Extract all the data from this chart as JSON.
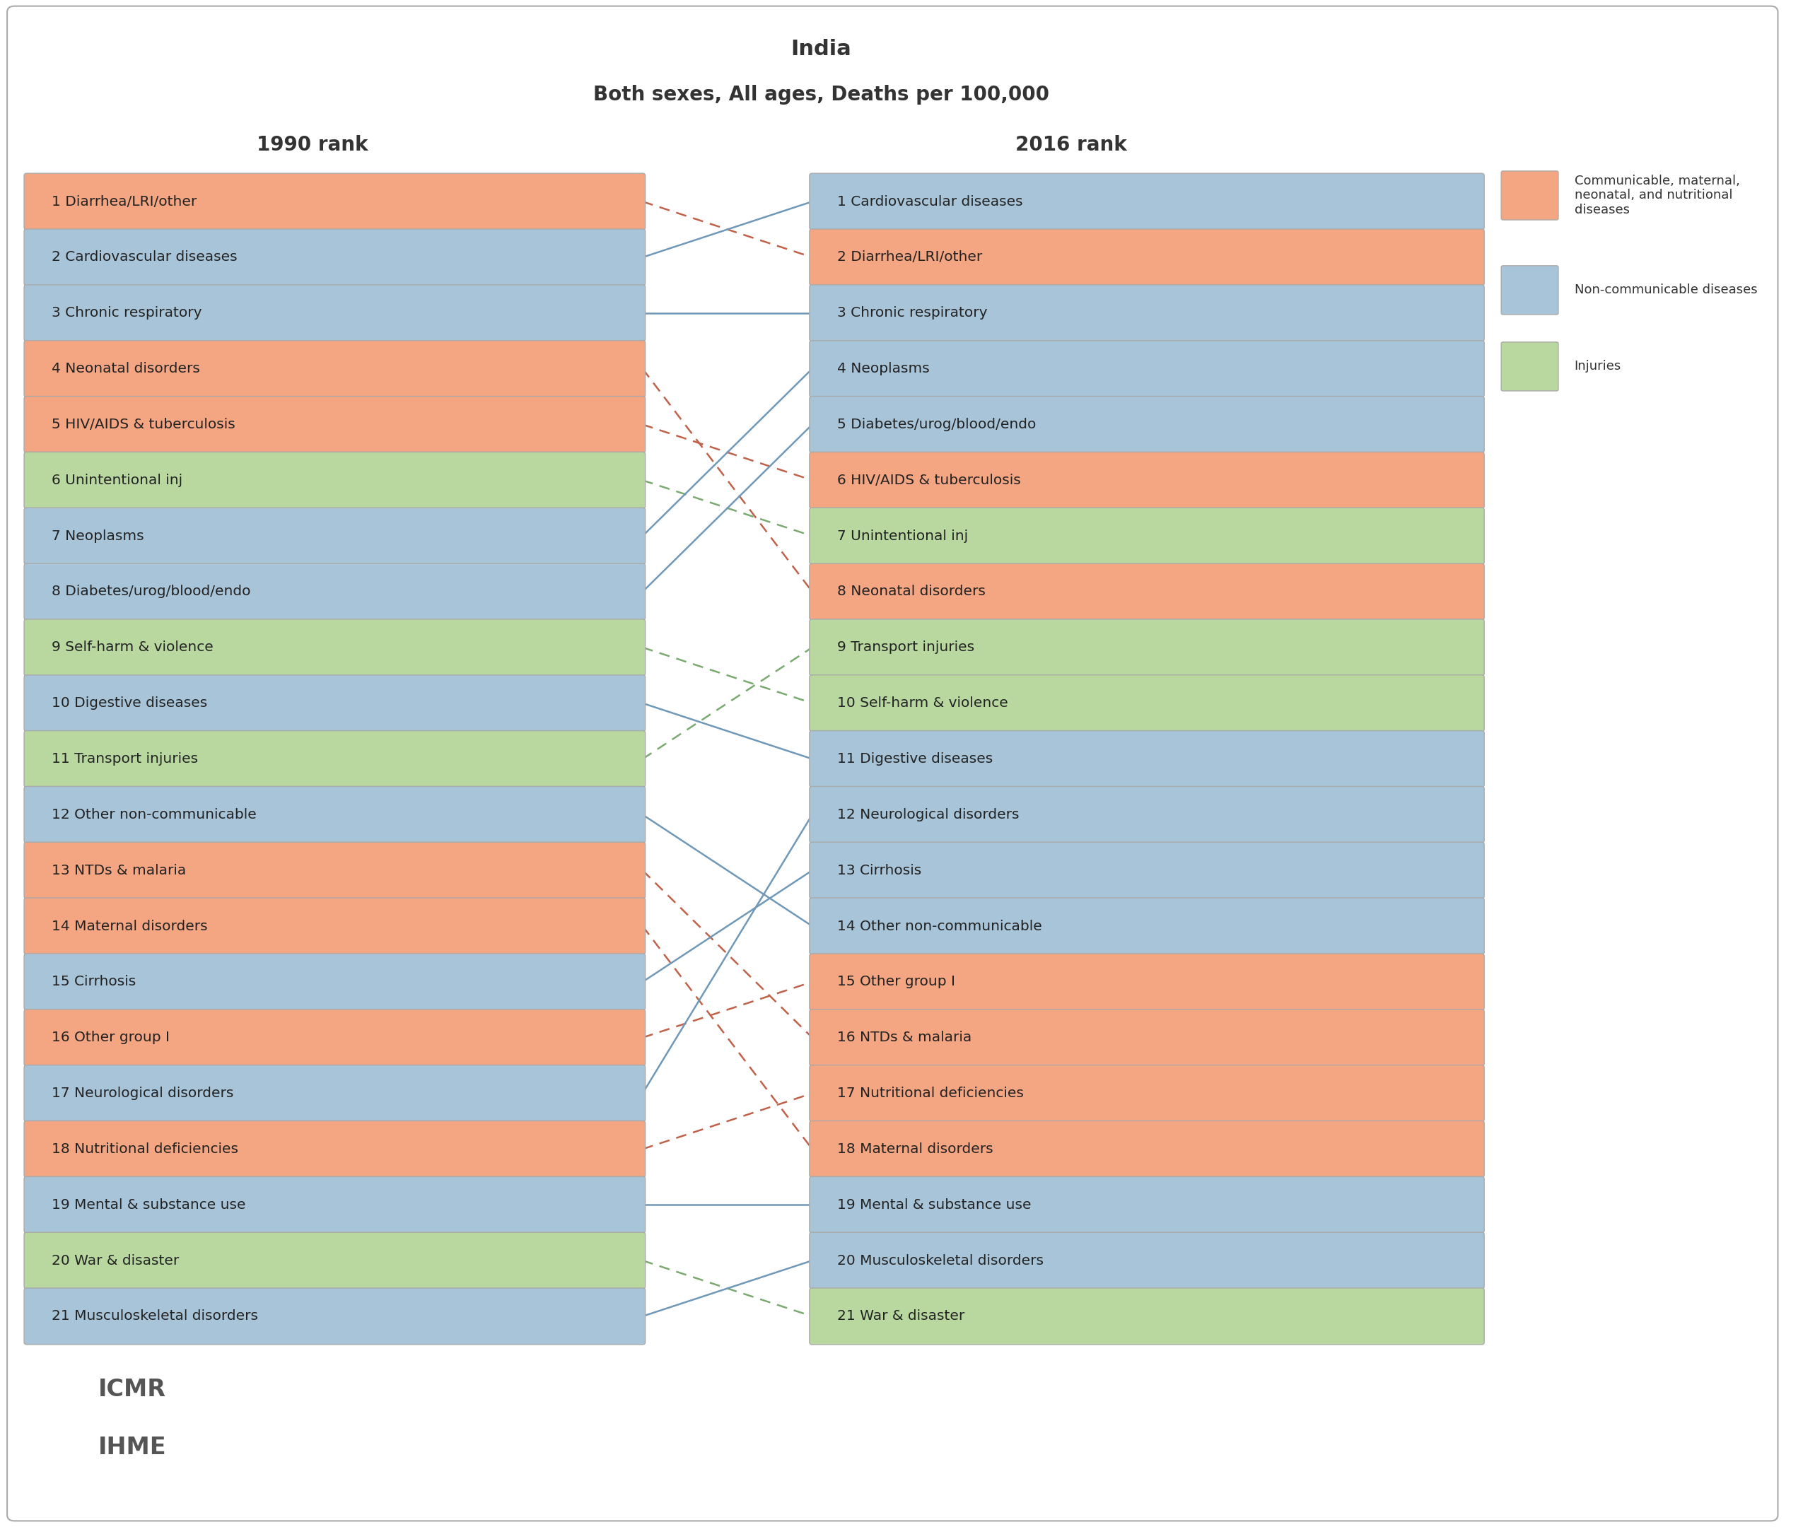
{
  "title_line1": "India",
  "title_line2": "Both sexes, All ages, Deaths per 100,000",
  "left_header": "1990 rank",
  "right_header": "2016 rank",
  "colors": {
    "communicable": "#f4a582",
    "non_communicable": "#a8c4d8",
    "injuries": "#b8d8a0"
  },
  "line_colors": {
    "communicable": "#c0624a",
    "non_communicable": "#7098b8",
    "injuries": "#7aaa70"
  },
  "left_1990": [
    {
      "rank": 1,
      "label": "Diarrhea/LRI/other",
      "type": "communicable"
    },
    {
      "rank": 2,
      "label": "Cardiovascular diseases",
      "type": "non_communicable"
    },
    {
      "rank": 3,
      "label": "Chronic respiratory",
      "type": "non_communicable"
    },
    {
      "rank": 4,
      "label": "Neonatal disorders",
      "type": "communicable"
    },
    {
      "rank": 5,
      "label": "HIV/AIDS & tuberculosis",
      "type": "communicable"
    },
    {
      "rank": 6,
      "label": "Unintentional inj",
      "type": "injuries"
    },
    {
      "rank": 7,
      "label": "Neoplasms",
      "type": "non_communicable"
    },
    {
      "rank": 8,
      "label": "Diabetes/urog/blood/endo",
      "type": "non_communicable"
    },
    {
      "rank": 9,
      "label": "Self-harm & violence",
      "type": "injuries"
    },
    {
      "rank": 10,
      "label": "Digestive diseases",
      "type": "non_communicable"
    },
    {
      "rank": 11,
      "label": "Transport injuries",
      "type": "injuries"
    },
    {
      "rank": 12,
      "label": "Other non-communicable",
      "type": "non_communicable"
    },
    {
      "rank": 13,
      "label": "NTDs & malaria",
      "type": "communicable"
    },
    {
      "rank": 14,
      "label": "Maternal disorders",
      "type": "communicable"
    },
    {
      "rank": 15,
      "label": "Cirrhosis",
      "type": "non_communicable"
    },
    {
      "rank": 16,
      "label": "Other group I",
      "type": "communicable"
    },
    {
      "rank": 17,
      "label": "Neurological disorders",
      "type": "non_communicable"
    },
    {
      "rank": 18,
      "label": "Nutritional deficiencies",
      "type": "communicable"
    },
    {
      "rank": 19,
      "label": "Mental & substance use",
      "type": "non_communicable"
    },
    {
      "rank": 20,
      "label": "War & disaster",
      "type": "injuries"
    },
    {
      "rank": 21,
      "label": "Musculoskeletal disorders",
      "type": "non_communicable"
    }
  ],
  "right_2016": [
    {
      "rank": 1,
      "label": "Cardiovascular diseases",
      "type": "non_communicable"
    },
    {
      "rank": 2,
      "label": "Diarrhea/LRI/other",
      "type": "communicable"
    },
    {
      "rank": 3,
      "label": "Chronic respiratory",
      "type": "non_communicable"
    },
    {
      "rank": 4,
      "label": "Neoplasms",
      "type": "non_communicable"
    },
    {
      "rank": 5,
      "label": "Diabetes/urog/blood/endo",
      "type": "non_communicable"
    },
    {
      "rank": 6,
      "label": "HIV/AIDS & tuberculosis",
      "type": "communicable"
    },
    {
      "rank": 7,
      "label": "Unintentional inj",
      "type": "injuries"
    },
    {
      "rank": 8,
      "label": "Neonatal disorders",
      "type": "communicable"
    },
    {
      "rank": 9,
      "label": "Transport injuries",
      "type": "injuries"
    },
    {
      "rank": 10,
      "label": "Self-harm & violence",
      "type": "injuries"
    },
    {
      "rank": 11,
      "label": "Digestive diseases",
      "type": "non_communicable"
    },
    {
      "rank": 12,
      "label": "Neurological disorders",
      "type": "non_communicable"
    },
    {
      "rank": 13,
      "label": "Cirrhosis",
      "type": "non_communicable"
    },
    {
      "rank": 14,
      "label": "Other non-communicable",
      "type": "non_communicable"
    },
    {
      "rank": 15,
      "label": "Other group I",
      "type": "communicable"
    },
    {
      "rank": 16,
      "label": "NTDs & malaria",
      "type": "communicable"
    },
    {
      "rank": 17,
      "label": "Nutritional deficiencies",
      "type": "communicable"
    },
    {
      "rank": 18,
      "label": "Maternal disorders",
      "type": "communicable"
    },
    {
      "rank": 19,
      "label": "Mental & substance use",
      "type": "non_communicable"
    },
    {
      "rank": 20,
      "label": "Musculoskeletal disorders",
      "type": "non_communicable"
    },
    {
      "rank": 21,
      "label": "War & disaster",
      "type": "injuries"
    }
  ],
  "legend": [
    {
      "label": "Communicable, maternal,\nneonatal, and nutritional\ndiseases",
      "type": "communicable"
    },
    {
      "label": "Non-communicable diseases",
      "type": "non_communicable"
    },
    {
      "label": "Injuries",
      "type": "injuries"
    }
  ]
}
